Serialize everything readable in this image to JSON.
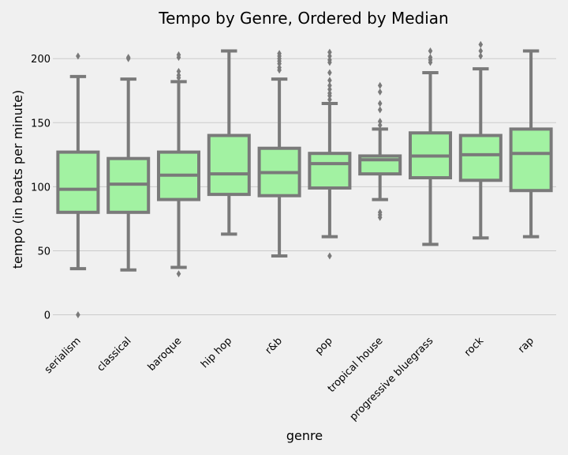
{
  "chart_data": {
    "type": "box",
    "title": "Tempo by Genre, Ordered by Median",
    "xlabel": "genre",
    "ylabel": "tempo (in beats per minute)",
    "ylim": [
      -12,
      218
    ],
    "yticks": [
      0,
      50,
      100,
      150,
      200
    ],
    "grid": "horizontal",
    "colors": {
      "box_fill": "#a2f2a2",
      "box_edge": "#7a7a7a",
      "background": "#f0f0f0",
      "grid": "#cbcbcb"
    },
    "categories": [
      "serialism",
      "classical",
      "baroque",
      "hip hop",
      "r&b",
      "pop",
      "tropical house",
      "progressive bluegrass",
      "rock",
      "rap"
    ],
    "boxes": [
      {
        "whislo": 36,
        "q1": 80,
        "med": 98,
        "q3": 127,
        "whishi": 186,
        "fliers": [
          0,
          202
        ]
      },
      {
        "whislo": 35,
        "q1": 80,
        "med": 102,
        "q3": 122,
        "whishi": 184,
        "fliers": [
          200,
          201
        ]
      },
      {
        "whislo": 37,
        "q1": 90,
        "med": 109,
        "q3": 127,
        "whishi": 182,
        "fliers": [
          32,
          185,
          187,
          190,
          201,
          203
        ]
      },
      {
        "whislo": 63,
        "q1": 94,
        "med": 110,
        "q3": 140,
        "whishi": 206,
        "fliers": []
      },
      {
        "whislo": 46,
        "q1": 93,
        "med": 111,
        "q3": 130,
        "whishi": 184,
        "fliers": [
          191,
          193,
          196,
          198,
          200,
          202,
          204
        ]
      },
      {
        "whislo": 61,
        "q1": 99,
        "med": 118,
        "q3": 126,
        "whishi": 165,
        "fliers": [
          46,
          168,
          171,
          173,
          176,
          179,
          183,
          189,
          197,
          199,
          202,
          205
        ]
      },
      {
        "whislo": 90,
        "q1": 110,
        "med": 121,
        "q3": 124,
        "whishi": 145,
        "fliers": [
          76,
          78,
          80,
          148,
          151,
          160,
          165,
          174,
          179
        ]
      },
      {
        "whislo": 55,
        "q1": 107,
        "med": 124,
        "q3": 142,
        "whishi": 189,
        "fliers": [
          197,
          199,
          201,
          206
        ]
      },
      {
        "whislo": 60,
        "q1": 105,
        "med": 125,
        "q3": 140,
        "whishi": 192,
        "fliers": [
          202,
          206,
          211
        ]
      },
      {
        "whislo": 61,
        "q1": 97,
        "med": 126,
        "q3": 145,
        "whishi": 206,
        "fliers": []
      }
    ]
  }
}
